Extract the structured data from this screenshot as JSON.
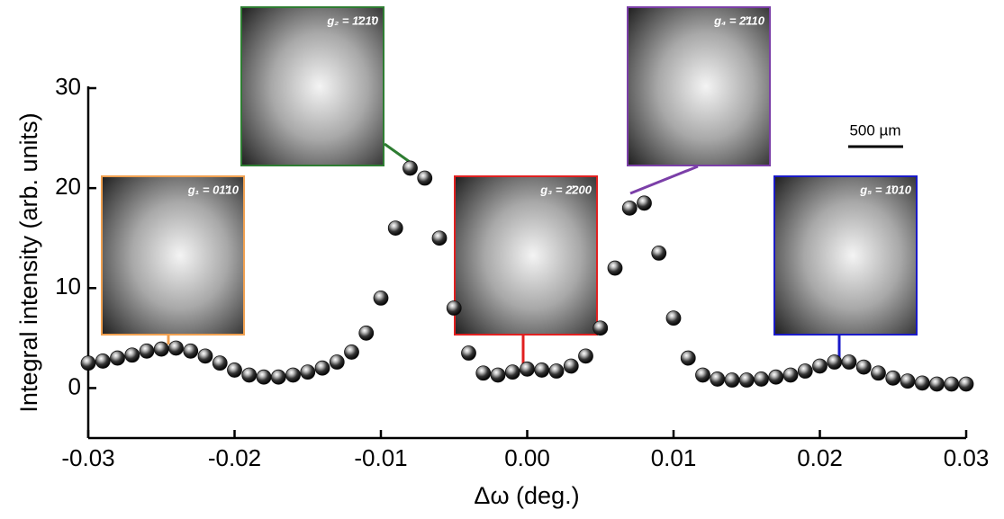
{
  "chart_data": {
    "type": "scatter",
    "x_label": "Δω (deg.)",
    "y_label": "Integral intensity (arb. units)",
    "x": [
      -0.03,
      -0.029,
      -0.028,
      -0.027,
      -0.026,
      -0.025,
      -0.024,
      -0.023,
      -0.022,
      -0.021,
      -0.02,
      -0.019,
      -0.018,
      -0.017,
      -0.016,
      -0.015,
      -0.014,
      -0.013,
      -0.012,
      -0.011,
      -0.01,
      -0.009,
      -0.008,
      -0.007,
      -0.006,
      -0.005,
      -0.004,
      -0.003,
      -0.002,
      -0.001,
      0.0,
      0.001,
      0.002,
      0.003,
      0.004,
      0.005,
      0.006,
      0.007,
      0.008,
      0.009,
      0.01,
      0.011,
      0.012,
      0.013,
      0.014,
      0.015,
      0.016,
      0.017,
      0.018,
      0.019,
      0.02,
      0.021,
      0.022,
      0.023,
      0.024,
      0.025,
      0.026,
      0.027,
      0.028,
      0.029,
      0.03
    ],
    "values": [
      2.5,
      2.7,
      3.0,
      3.3,
      3.7,
      3.9,
      4.0,
      3.7,
      3.2,
      2.5,
      1.8,
      1.3,
      1.1,
      1.1,
      1.3,
      1.6,
      2.0,
      2.6,
      3.6,
      5.5,
      9.0,
      16.0,
      22.0,
      21.0,
      15.0,
      8.0,
      3.5,
      1.5,
      1.3,
      1.6,
      1.9,
      1.8,
      1.7,
      2.2,
      3.2,
      6.0,
      12.0,
      18.0,
      18.5,
      13.5,
      7.0,
      3.0,
      1.3,
      0.9,
      0.8,
      0.8,
      0.9,
      1.1,
      1.3,
      1.7,
      2.2,
      2.6,
      2.6,
      2.1,
      1.5,
      1.0,
      0.7,
      0.5,
      0.4,
      0.4,
      0.4
    ],
    "color": "#111111",
    "xlim": [
      -0.03,
      0.03
    ],
    "xticks": [
      -0.03,
      -0.02,
      -0.01,
      {
        "value": 0,
        "label": "0.00"
      },
      0.01,
      0.02,
      0.03
    ],
    "ylim": [
      -5,
      30
    ],
    "yticks": [
      0,
      10,
      20,
      30
    ],
    "insets": [
      {
        "label": "g₁ = 01̕10",
        "color": "#f0a050"
      },
      {
        "label": "g₂ = 1̕21̕0",
        "color": "#2e7d32"
      },
      {
        "label": "g₃ = 2̕200",
        "color": "#e02020"
      },
      {
        "label": "g₄ = 2̕110",
        "color": "#7b3fa8"
      },
      {
        "label": "g₅ = 1̕010",
        "color": "#1a1ac8"
      }
    ],
    "scale_bar": "500 µm"
  }
}
